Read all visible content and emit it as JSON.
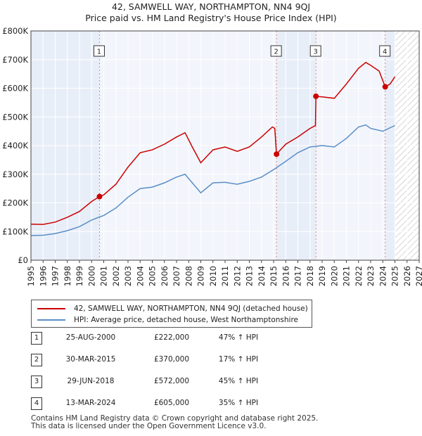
{
  "chart_data": {
    "type": "line",
    "title": "42, SAMWELL WAY, NORTHAMPTON, NN4 9QJ",
    "subtitle": "Price paid vs. HM Land Registry's House Price Index (HPI)",
    "xlim": [
      1995,
      2027
    ],
    "ylim": [
      0,
      800000
    ],
    "x_ticks": [
      "1995",
      "1996",
      "1997",
      "1998",
      "1999",
      "2000",
      "2001",
      "2002",
      "2003",
      "2004",
      "2005",
      "2006",
      "2007",
      "2008",
      "2009",
      "2010",
      "2011",
      "2012",
      "2013",
      "2014",
      "2015",
      "2016",
      "2017",
      "2018",
      "2019",
      "2020",
      "2021",
      "2022",
      "2023",
      "2024",
      "2025",
      "2026",
      "2027"
    ],
    "y_ticks": [
      {
        "value": 0,
        "label": "£0"
      },
      {
        "value": 100000,
        "label": "£100K"
      },
      {
        "value": 200000,
        "label": "£200K"
      },
      {
        "value": 300000,
        "label": "£300K"
      },
      {
        "value": 400000,
        "label": "£400K"
      },
      {
        "value": 500000,
        "label": "£500K"
      },
      {
        "value": 600000,
        "label": "£600K"
      },
      {
        "value": 700000,
        "label": "£700K"
      },
      {
        "value": 800000,
        "label": "£800K"
      }
    ],
    "future_from": 2025.0,
    "series": [
      {
        "name": "42, SAMWELL WAY, NORTHAMPTON, NN4 9QJ (detached house)",
        "color": "#cc0000",
        "points": [
          [
            1995,
            126000
          ],
          [
            1996,
            125000
          ],
          [
            1997,
            133000
          ],
          [
            1998,
            150000
          ],
          [
            1999,
            170000
          ],
          [
            2000,
            205000
          ],
          [
            2000.65,
            222000
          ],
          [
            2001,
            228000
          ],
          [
            2002,
            265000
          ],
          [
            2003,
            325000
          ],
          [
            2004,
            375000
          ],
          [
            2005,
            385000
          ],
          [
            2006,
            405000
          ],
          [
            2007,
            430000
          ],
          [
            2007.7,
            445000
          ],
          [
            2008.3,
            395000
          ],
          [
            2009,
            340000
          ],
          [
            2010,
            385000
          ],
          [
            2011,
            395000
          ],
          [
            2012,
            380000
          ],
          [
            2013,
            395000
          ],
          [
            2014,
            430000
          ],
          [
            2014.9,
            465000
          ],
          [
            2015.1,
            460000
          ],
          [
            2015.24,
            370000
          ],
          [
            2016,
            405000
          ],
          [
            2017,
            430000
          ],
          [
            2018,
            460000
          ],
          [
            2018.45,
            470000
          ],
          [
            2018.49,
            572000
          ],
          [
            2019,
            570000
          ],
          [
            2020,
            565000
          ],
          [
            2021,
            615000
          ],
          [
            2022,
            670000
          ],
          [
            2022.6,
            690000
          ],
          [
            2023,
            680000
          ],
          [
            2023.7,
            660000
          ],
          [
            2024.2,
            605000
          ],
          [
            2024.6,
            615000
          ],
          [
            2025,
            640000
          ]
        ]
      },
      {
        "name": "HPI: Average price, detached house, West Northamptonshire",
        "color": "#5b8ec6",
        "points": [
          [
            1995,
            86000
          ],
          [
            1996,
            87000
          ],
          [
            1997,
            93000
          ],
          [
            1998,
            103000
          ],
          [
            1999,
            117000
          ],
          [
            2000,
            140000
          ],
          [
            2000.65,
            151000
          ],
          [
            2001,
            156000
          ],
          [
            2002,
            182000
          ],
          [
            2003,
            220000
          ],
          [
            2004,
            250000
          ],
          [
            2005,
            255000
          ],
          [
            2006,
            270000
          ],
          [
            2007,
            290000
          ],
          [
            2007.7,
            300000
          ],
          [
            2008.3,
            270000
          ],
          [
            2009,
            235000
          ],
          [
            2010,
            270000
          ],
          [
            2011,
            272000
          ],
          [
            2012,
            265000
          ],
          [
            2013,
            275000
          ],
          [
            2014,
            290000
          ],
          [
            2015,
            316000
          ],
          [
            2016,
            345000
          ],
          [
            2017,
            375000
          ],
          [
            2018,
            395000
          ],
          [
            2019,
            400000
          ],
          [
            2020,
            395000
          ],
          [
            2021,
            425000
          ],
          [
            2022,
            465000
          ],
          [
            2022.6,
            472000
          ],
          [
            2023,
            460000
          ],
          [
            2024,
            450000
          ],
          [
            2025,
            470000
          ]
        ]
      }
    ],
    "sales": [
      {
        "num": "1",
        "x": 2000.65,
        "price": 222000
      },
      {
        "num": "2",
        "x": 2015.24,
        "price": 370000
      },
      {
        "num": "3",
        "x": 2018.49,
        "price": 572000
      },
      {
        "num": "4",
        "x": 2024.2,
        "price": 605000
      }
    ]
  },
  "legend": {
    "property_label": "42, SAMWELL WAY, NORTHAMPTON, NN4 9QJ (detached house)",
    "hpi_label": "HPI: Average price, detached house, West Northamptonshire",
    "property_color": "#cc0000",
    "hpi_color": "#5b8ec6"
  },
  "transactions": [
    {
      "num": "1",
      "date": "25-AUG-2000",
      "price": "£222,000",
      "hpi": "47% ↑ HPI"
    },
    {
      "num": "2",
      "date": "30-MAR-2015",
      "price": "£370,000",
      "hpi": "17% ↑ HPI"
    },
    {
      "num": "3",
      "date": "29-JUN-2018",
      "price": "£572,000",
      "hpi": "45% ↑ HPI"
    },
    {
      "num": "4",
      "date": "13-MAR-2024",
      "price": "£605,000",
      "hpi": "35% ↑ HPI"
    }
  ],
  "footer": {
    "line1": "Contains HM Land Registry data © Crown copyright and database right 2025.",
    "line2": "This data is licensed under the Open Government Licence v3.0."
  }
}
